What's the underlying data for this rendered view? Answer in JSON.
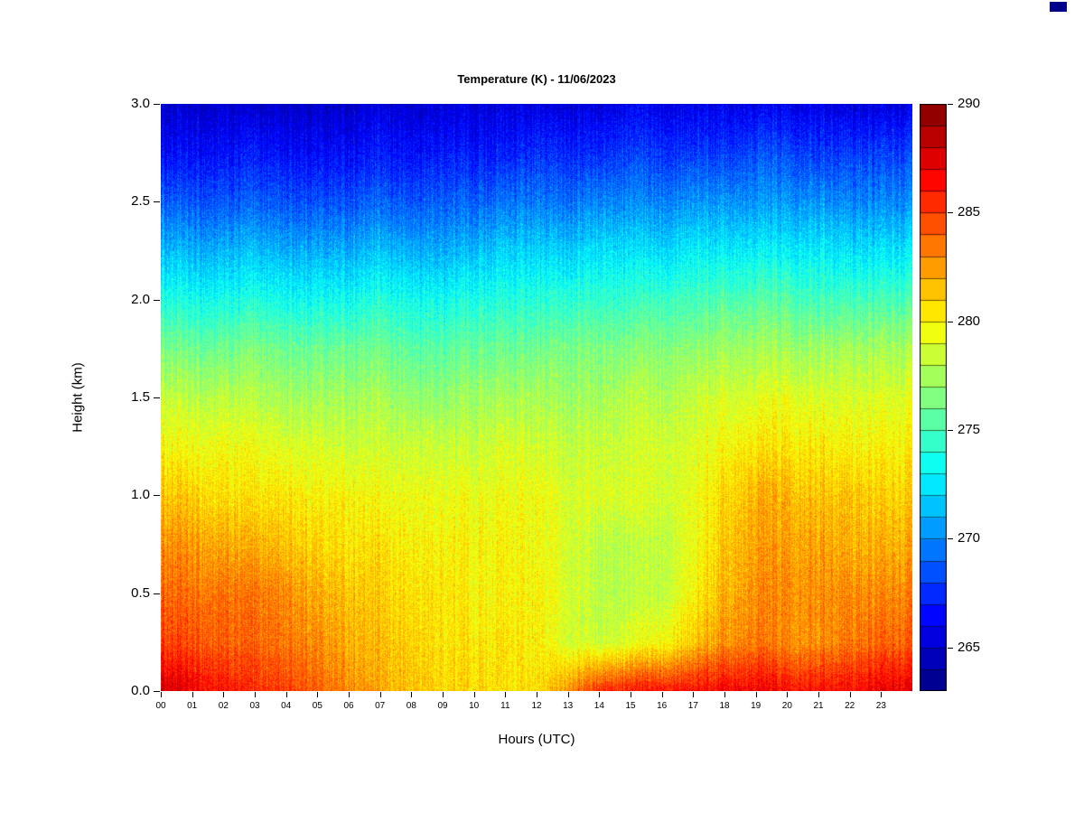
{
  "page": {
    "background": "#ffffff",
    "text_color": "#000000",
    "tick_color": "#000000"
  },
  "corner_artifact": {
    "color": "#00008b"
  },
  "chart_data": {
    "type": "heatmap",
    "title": "Temperature (K) - 11/06/2023",
    "xlabel": "Hours (UTC)",
    "ylabel": "Height (km)",
    "x_range": [
      0,
      24
    ],
    "y_range": [
      0,
      3
    ],
    "grid_lines": false,
    "x_tick_labels": [
      "00",
      "01",
      "02",
      "03",
      "04",
      "05",
      "06",
      "07",
      "08",
      "09",
      "10",
      "11",
      "12",
      "13",
      "14",
      "15",
      "16",
      "17",
      "18",
      "19",
      "20",
      "21",
      "22",
      "23"
    ],
    "y_tick_labels": [
      "0.0",
      "0.5",
      "1.0",
      "1.5",
      "2.0",
      "2.5",
      "3.0"
    ],
    "y_tick_values": [
      0,
      0.5,
      1,
      1.5,
      2,
      2.5,
      3
    ],
    "colormap": {
      "min": 263,
      "max": 290,
      "band_size": 1,
      "stops": [
        {
          "pos": 0,
          "color": "#000080"
        },
        {
          "pos": 0.125,
          "color": "#0000ff"
        },
        {
          "pos": 0.375,
          "color": "#00ffff"
        },
        {
          "pos": 0.625,
          "color": "#ffff00"
        },
        {
          "pos": 0.875,
          "color": "#ff0000"
        },
        {
          "pos": 1,
          "color": "#800000"
        }
      ]
    },
    "colorbar": {
      "tick_values": [
        265,
        270,
        275,
        280,
        285,
        290
      ],
      "tick_labels": [
        "265",
        "270",
        "275",
        "280",
        "285",
        "290"
      ],
      "position": "right"
    },
    "grid": {
      "hours": [
        0,
        1,
        2,
        3,
        4,
        5,
        6,
        7,
        8,
        9,
        10,
        11,
        12,
        13,
        14,
        15,
        16,
        17,
        18,
        19,
        20,
        21,
        22,
        23
      ],
      "heights": [
        0,
        0.25,
        0.5,
        0.75,
        1,
        1.25,
        1.5,
        1.75,
        2,
        2.25,
        2.5,
        2.75,
        3
      ],
      "values": [
        [
          288,
          287,
          286,
          285.5,
          285,
          284,
          283,
          282,
          281.5,
          281,
          281,
          280.5,
          280.5,
          283,
          285.5,
          286,
          286.5,
          286.5,
          287,
          287,
          286.5,
          286.5,
          286.5,
          287
        ],
        [
          285,
          284.5,
          284,
          284,
          283.5,
          283,
          282,
          281.5,
          281,
          280.5,
          280.5,
          280.5,
          280,
          279,
          278.5,
          279,
          280,
          281.5,
          283,
          283.5,
          283,
          283,
          283.5,
          284
        ],
        [
          284,
          283.5,
          283.5,
          283.5,
          283,
          282,
          281.5,
          281,
          280.5,
          280.5,
          280,
          280,
          280,
          279,
          278,
          278,
          278.5,
          280,
          282,
          283,
          283,
          283,
          283,
          283
        ],
        [
          283,
          282.5,
          282,
          282,
          281.5,
          281,
          280.5,
          280.5,
          280,
          280,
          280,
          280,
          279.5,
          279,
          278,
          278,
          278.5,
          279.5,
          281.5,
          282.5,
          282.5,
          282.5,
          282,
          282
        ],
        [
          281.5,
          281,
          280.5,
          280.5,
          280.5,
          280,
          280,
          279.5,
          279.5,
          279.5,
          279.5,
          279.5,
          279.5,
          279,
          279,
          279,
          279,
          279.5,
          281,
          282,
          282,
          281.5,
          281.5,
          281
        ],
        [
          280,
          279.5,
          279.5,
          279.5,
          279,
          279,
          278.5,
          278.5,
          278.5,
          278.5,
          278.5,
          279,
          278.5,
          278.5,
          278.5,
          278.5,
          279,
          279,
          280,
          280.5,
          280.5,
          280.5,
          280,
          280
        ],
        [
          278.5,
          278,
          278,
          278,
          277.5,
          277.5,
          277.5,
          277.5,
          277,
          277,
          277.5,
          277.5,
          277.5,
          277.5,
          277.5,
          278,
          278,
          278.5,
          279,
          279,
          279.5,
          279,
          279,
          279
        ],
        [
          276.5,
          276,
          276,
          276.5,
          276,
          276,
          276,
          276,
          275.5,
          275.5,
          276,
          276,
          276,
          276.5,
          276.5,
          276.5,
          277,
          277,
          277.5,
          277.5,
          277.5,
          277.5,
          277.5,
          277.5
        ],
        [
          274,
          273.5,
          273.5,
          274,
          273.5,
          273.5,
          273.5,
          274,
          273.5,
          273.5,
          274,
          274,
          274,
          274.5,
          274.5,
          274.5,
          275,
          275,
          275.5,
          275.5,
          275.5,
          275,
          275,
          275
        ],
        [
          271.5,
          271,
          271,
          271.5,
          271,
          271,
          271,
          271.5,
          271,
          271,
          271.5,
          272,
          272,
          272,
          272.5,
          272.5,
          272.5,
          273,
          273,
          273,
          273,
          273,
          272.5,
          272.5
        ],
        [
          269,
          268.5,
          268.5,
          269,
          268.5,
          268.5,
          268.5,
          269,
          268.5,
          269,
          269,
          269.5,
          269.5,
          269.5,
          270,
          270,
          270,
          270.5,
          270.5,
          270.5,
          270.5,
          270.5,
          270,
          270
        ],
        [
          266.5,
          266.5,
          266.5,
          267,
          266.5,
          266.5,
          266.5,
          267,
          266.5,
          267,
          267,
          267,
          267.5,
          267.5,
          267.5,
          268,
          268,
          268,
          268,
          268.5,
          268.5,
          268,
          268,
          268
        ],
        [
          265,
          265,
          265,
          265,
          265,
          265,
          265,
          265.5,
          265,
          265.5,
          265.5,
          265.5,
          265.5,
          265.5,
          265.5,
          266,
          266,
          266,
          266,
          266,
          266,
          266,
          265.5,
          265.5
        ]
      ]
    },
    "noise": {
      "seed": 1234,
      "column_amplitude": 0.85,
      "speckle_amplitude": 1.25
    }
  }
}
